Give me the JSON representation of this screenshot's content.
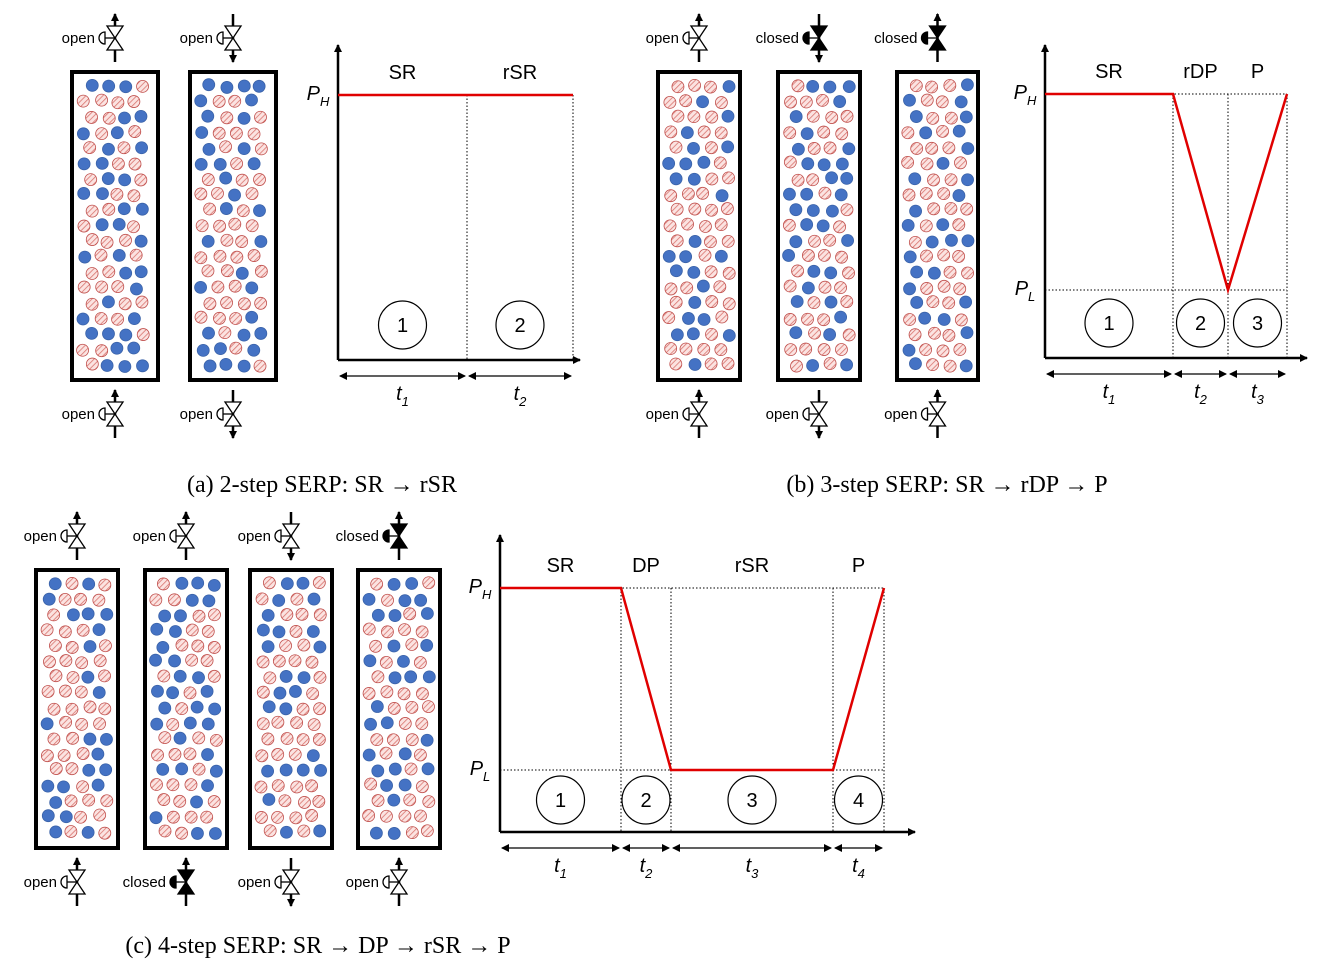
{
  "panels": [
    {
      "caption": "(a) 2-step SERP: SR → rSR",
      "columns": [
        {
          "top_valve": "open",
          "bottom_valve": "open"
        },
        {
          "top_valve": "open",
          "bottom_valve": "open"
        }
      ],
      "chart": {
        "pressure_labels": [
          {
            "symbol": "P",
            "subscript": "H"
          }
        ],
        "steps": [
          {
            "name": "SR",
            "number": "1",
            "time": {
              "symbol": "t",
              "subscript": "1"
            }
          },
          {
            "name": "rSR",
            "number": "2",
            "time": {
              "symbol": "t",
              "subscript": "2"
            }
          }
        ]
      }
    },
    {
      "caption": "(b) 3-step SERP: SR → rDP → P",
      "columns": [
        {
          "top_valve": "open",
          "bottom_valve": "open"
        },
        {
          "top_valve": "closed",
          "bottom_valve": "open"
        },
        {
          "top_valve": "closed",
          "bottom_valve": "open"
        }
      ],
      "chart": {
        "pressure_labels": [
          {
            "symbol": "P",
            "subscript": "H"
          },
          {
            "symbol": "P",
            "subscript": "L"
          }
        ],
        "steps": [
          {
            "name": "SR",
            "number": "1",
            "time": {
              "symbol": "t",
              "subscript": "1"
            }
          },
          {
            "name": "rDP",
            "number": "2",
            "time": {
              "symbol": "t",
              "subscript": "2"
            }
          },
          {
            "name": "P",
            "number": "3",
            "time": {
              "symbol": "t",
              "subscript": "3"
            }
          }
        ]
      }
    },
    {
      "caption": "(c) 4-step SERP: SR → DP → rSR → P",
      "columns": [
        {
          "top_valve": "open",
          "bottom_valve": "open"
        },
        {
          "top_valve": "open",
          "bottom_valve": "closed"
        },
        {
          "top_valve": "open",
          "bottom_valve": "open"
        },
        {
          "top_valve": "closed",
          "bottom_valve": "open"
        }
      ],
      "chart": {
        "pressure_labels": [
          {
            "symbol": "P",
            "subscript": "H"
          },
          {
            "symbol": "P",
            "subscript": "L"
          }
        ],
        "steps": [
          {
            "name": "SR",
            "number": "1",
            "time": {
              "symbol": "t",
              "subscript": "1"
            }
          },
          {
            "name": "DP",
            "number": "2",
            "time": {
              "symbol": "t",
              "subscript": "2"
            }
          },
          {
            "name": "rSR",
            "number": "3",
            "time": {
              "symbol": "t",
              "subscript": "3"
            }
          },
          {
            "name": "P",
            "number": "4",
            "time": {
              "symbol": "t",
              "subscript": "4"
            }
          }
        ]
      }
    }
  ]
}
